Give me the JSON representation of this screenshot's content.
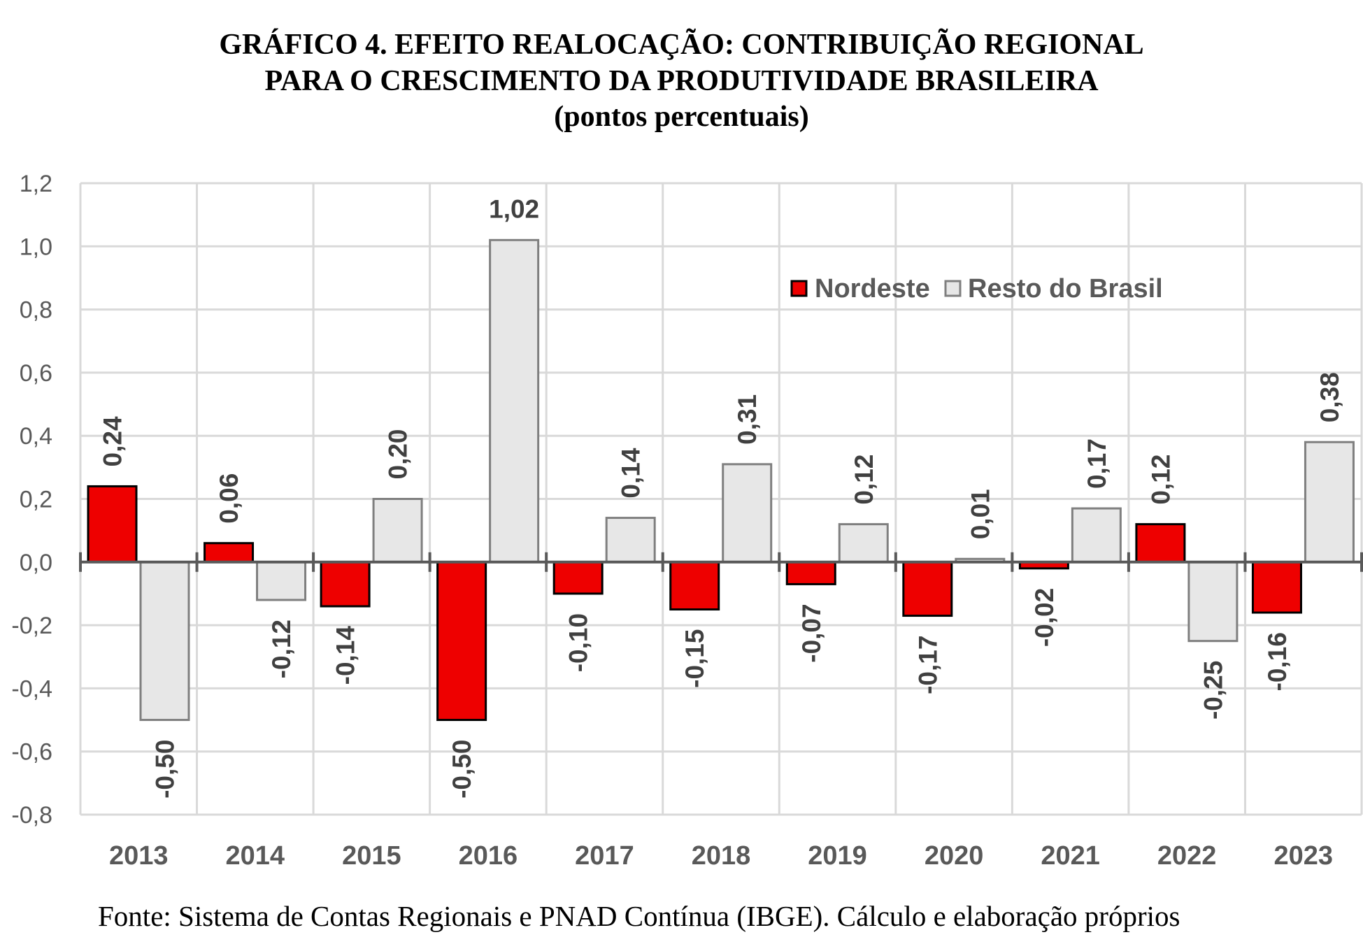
{
  "title": {
    "line1": "GRÁFICO 4. EFEITO REALOCAÇÃO: CONTRIBUIÇÃO REGIONAL",
    "line2": "PARA O CRESCIMENTO DA PRODUTIVIDADE BRASILEIRA",
    "line3": "(pontos percentuais)"
  },
  "footer": "Fonte: Sistema de Contas Regionais e PNAD Contínua (IBGE). Cálculo e elaboração próprios",
  "chart_data": {
    "type": "bar",
    "title": "GRÁFICO 4. EFEITO REALOCAÇÃO: CONTRIBUIÇÃO REGIONAL PARA O CRESCIMENTO DA PRODUTIVIDADE BRASILEIRA",
    "subtitle": "(pontos percentuais)",
    "xlabel": "",
    "ylabel": "",
    "categories": [
      "2013",
      "2014",
      "2015",
      "2016",
      "2017",
      "2018",
      "2019",
      "2020",
      "2021",
      "2022",
      "2023"
    ],
    "series": [
      {
        "name": "Nordeste",
        "color": "#ee0000",
        "values": [
          0.24,
          0.06,
          -0.14,
          -0.5,
          -0.1,
          -0.15,
          -0.07,
          -0.17,
          -0.02,
          0.12,
          -0.16
        ],
        "labels": [
          "0,24",
          "0,06",
          "-0,14",
          "-0,50",
          "-0,10",
          "-0,15",
          "-0,07",
          "-0,17",
          "-0,02",
          "0,12",
          "-0,16"
        ]
      },
      {
        "name": "Resto do Brasil",
        "color": "#e7e7e7",
        "values": [
          -0.5,
          -0.12,
          0.2,
          1.02,
          0.14,
          0.31,
          0.12,
          0.01,
          0.17,
          -0.25,
          0.38
        ],
        "labels": [
          "-0,50",
          "-0,12",
          "0,20",
          "1,02",
          "0,14",
          "0,31",
          "0,12",
          "0,01",
          "0,17",
          "-0,25",
          "0,38"
        ]
      }
    ],
    "ylim": [
      -0.8,
      1.2
    ],
    "yticks": [
      1.2,
      1.0,
      0.8,
      0.6,
      0.4,
      0.2,
      0.0,
      -0.2,
      -0.4,
      -0.6,
      -0.8
    ],
    "ytick_labels": [
      "1,2",
      "1,0",
      "0,8",
      "0,6",
      "0,4",
      "0,2",
      "0,0",
      "-0,2",
      "-0,4",
      "-0,6",
      "-0,8"
    ],
    "grid": true,
    "legend": {
      "placement": "top-right",
      "entries": [
        "Nordeste",
        "Resto do Brasil"
      ]
    }
  }
}
